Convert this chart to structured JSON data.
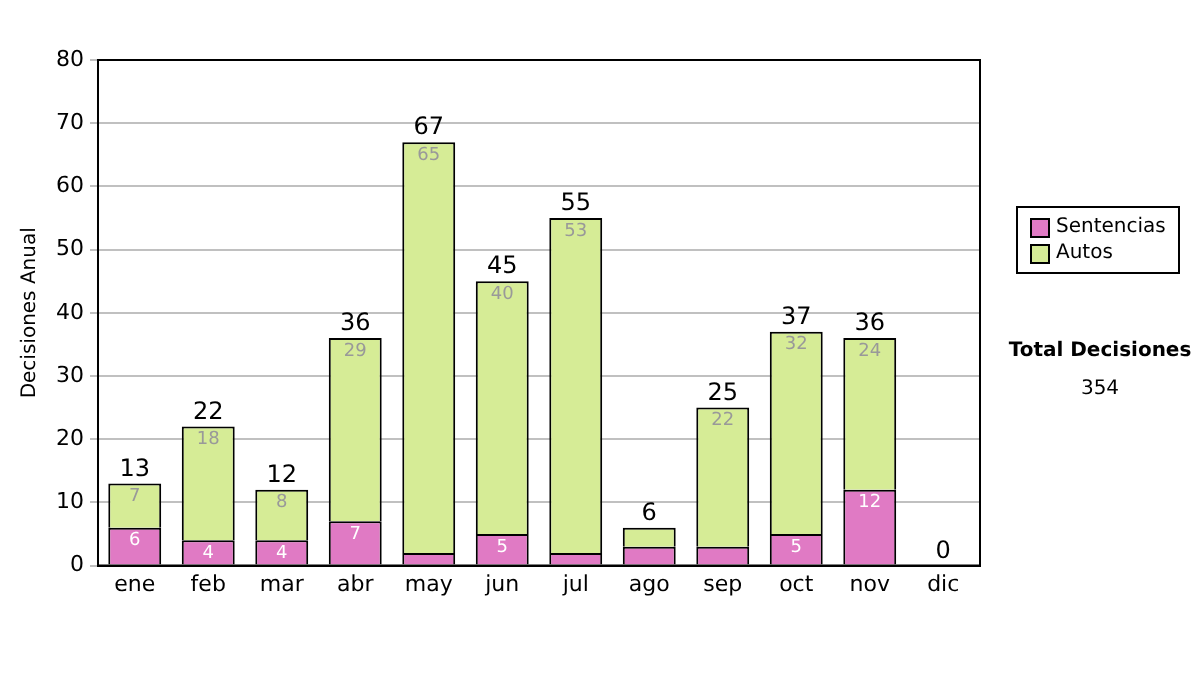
{
  "chart_data": {
    "type": "bar",
    "stacked": true,
    "ylabel": "Decisiones Anual",
    "categories": [
      "ene",
      "feb",
      "mar",
      "abr",
      "may",
      "jun",
      "jul",
      "ago",
      "sep",
      "oct",
      "nov",
      "dic"
    ],
    "series": [
      {
        "name": "Sentencias",
        "color": "#e07ac4",
        "values": [
          6,
          4,
          4,
          7,
          2,
          5,
          2,
          3,
          3,
          5,
          12,
          0
        ],
        "value_labels": [
          "6",
          "4",
          "4",
          "7",
          null,
          "5",
          null,
          null,
          null,
          "5",
          "12",
          null
        ]
      },
      {
        "name": "Autos",
        "color": "#d6ec96",
        "values": [
          7,
          18,
          8,
          29,
          65,
          40,
          53,
          3,
          22,
          32,
          24,
          0
        ],
        "value_labels": [
          "7",
          "18",
          "8",
          "29",
          "65",
          "40",
          "53",
          null,
          "22",
          "32",
          "24",
          null
        ]
      }
    ],
    "totals": [
      "13",
      "22",
      "12",
      "36",
      "67",
      "45",
      "55",
      "6",
      "25",
      "37",
      "36",
      "0"
    ],
    "ylim": [
      0,
      80
    ],
    "yticks": [
      0,
      10,
      20,
      30,
      40,
      50,
      60,
      70,
      80
    ],
    "grid": "y",
    "legend": "right",
    "annotations": [
      "Total Decisiones",
      "354"
    ]
  }
}
